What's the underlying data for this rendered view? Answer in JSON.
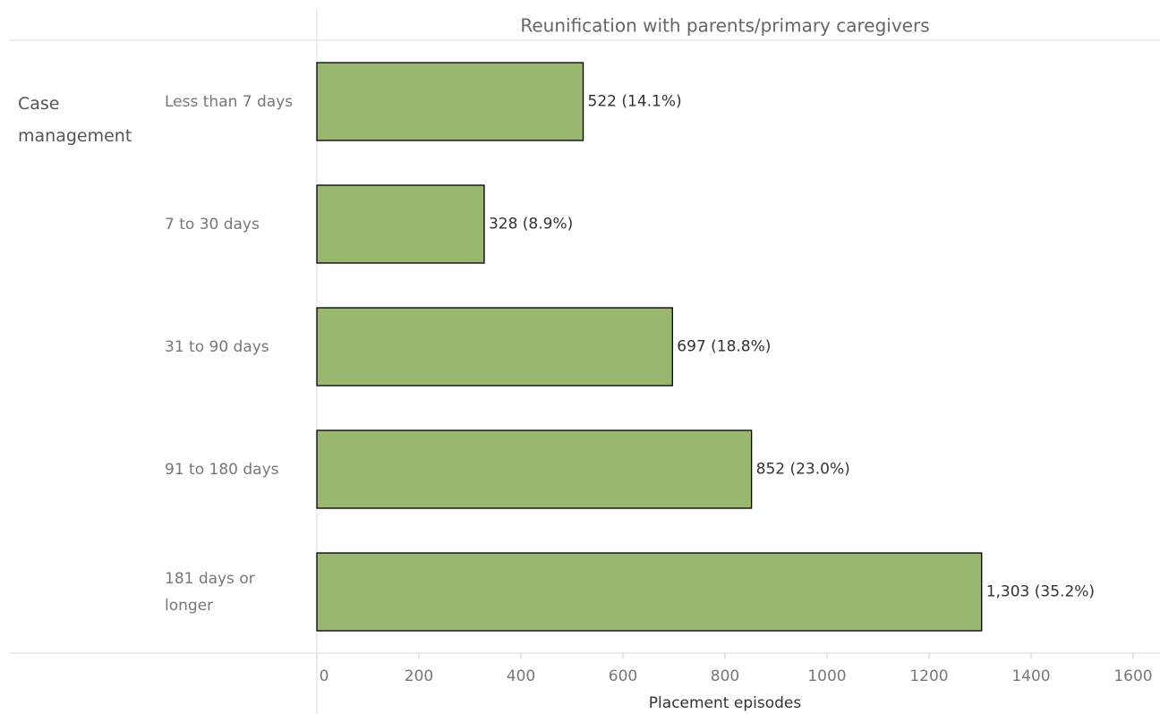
{
  "chart_data": {
    "type": "bar",
    "orientation": "horizontal",
    "title": "Reunification with parents/primary caregivers",
    "row_group": "Case management",
    "categories": [
      "Less than 7 days",
      "7 to 30 days",
      "31 to 90 days",
      "91 to 180 days",
      "181 days or longer"
    ],
    "values": [
      522,
      328,
      697,
      852,
      1303
    ],
    "value_labels": [
      "522 (14.1%)",
      "328 (8.9%)",
      "697 (18.8%)",
      "852 (23.0%)",
      "1,303 (35.2%)"
    ],
    "color": "#99b76f",
    "x_label": "Placement episodes",
    "xlim": [
      0,
      1600
    ],
    "xticks": [
      0,
      200,
      400,
      600,
      800,
      1000,
      1200,
      1400,
      1600
    ]
  }
}
